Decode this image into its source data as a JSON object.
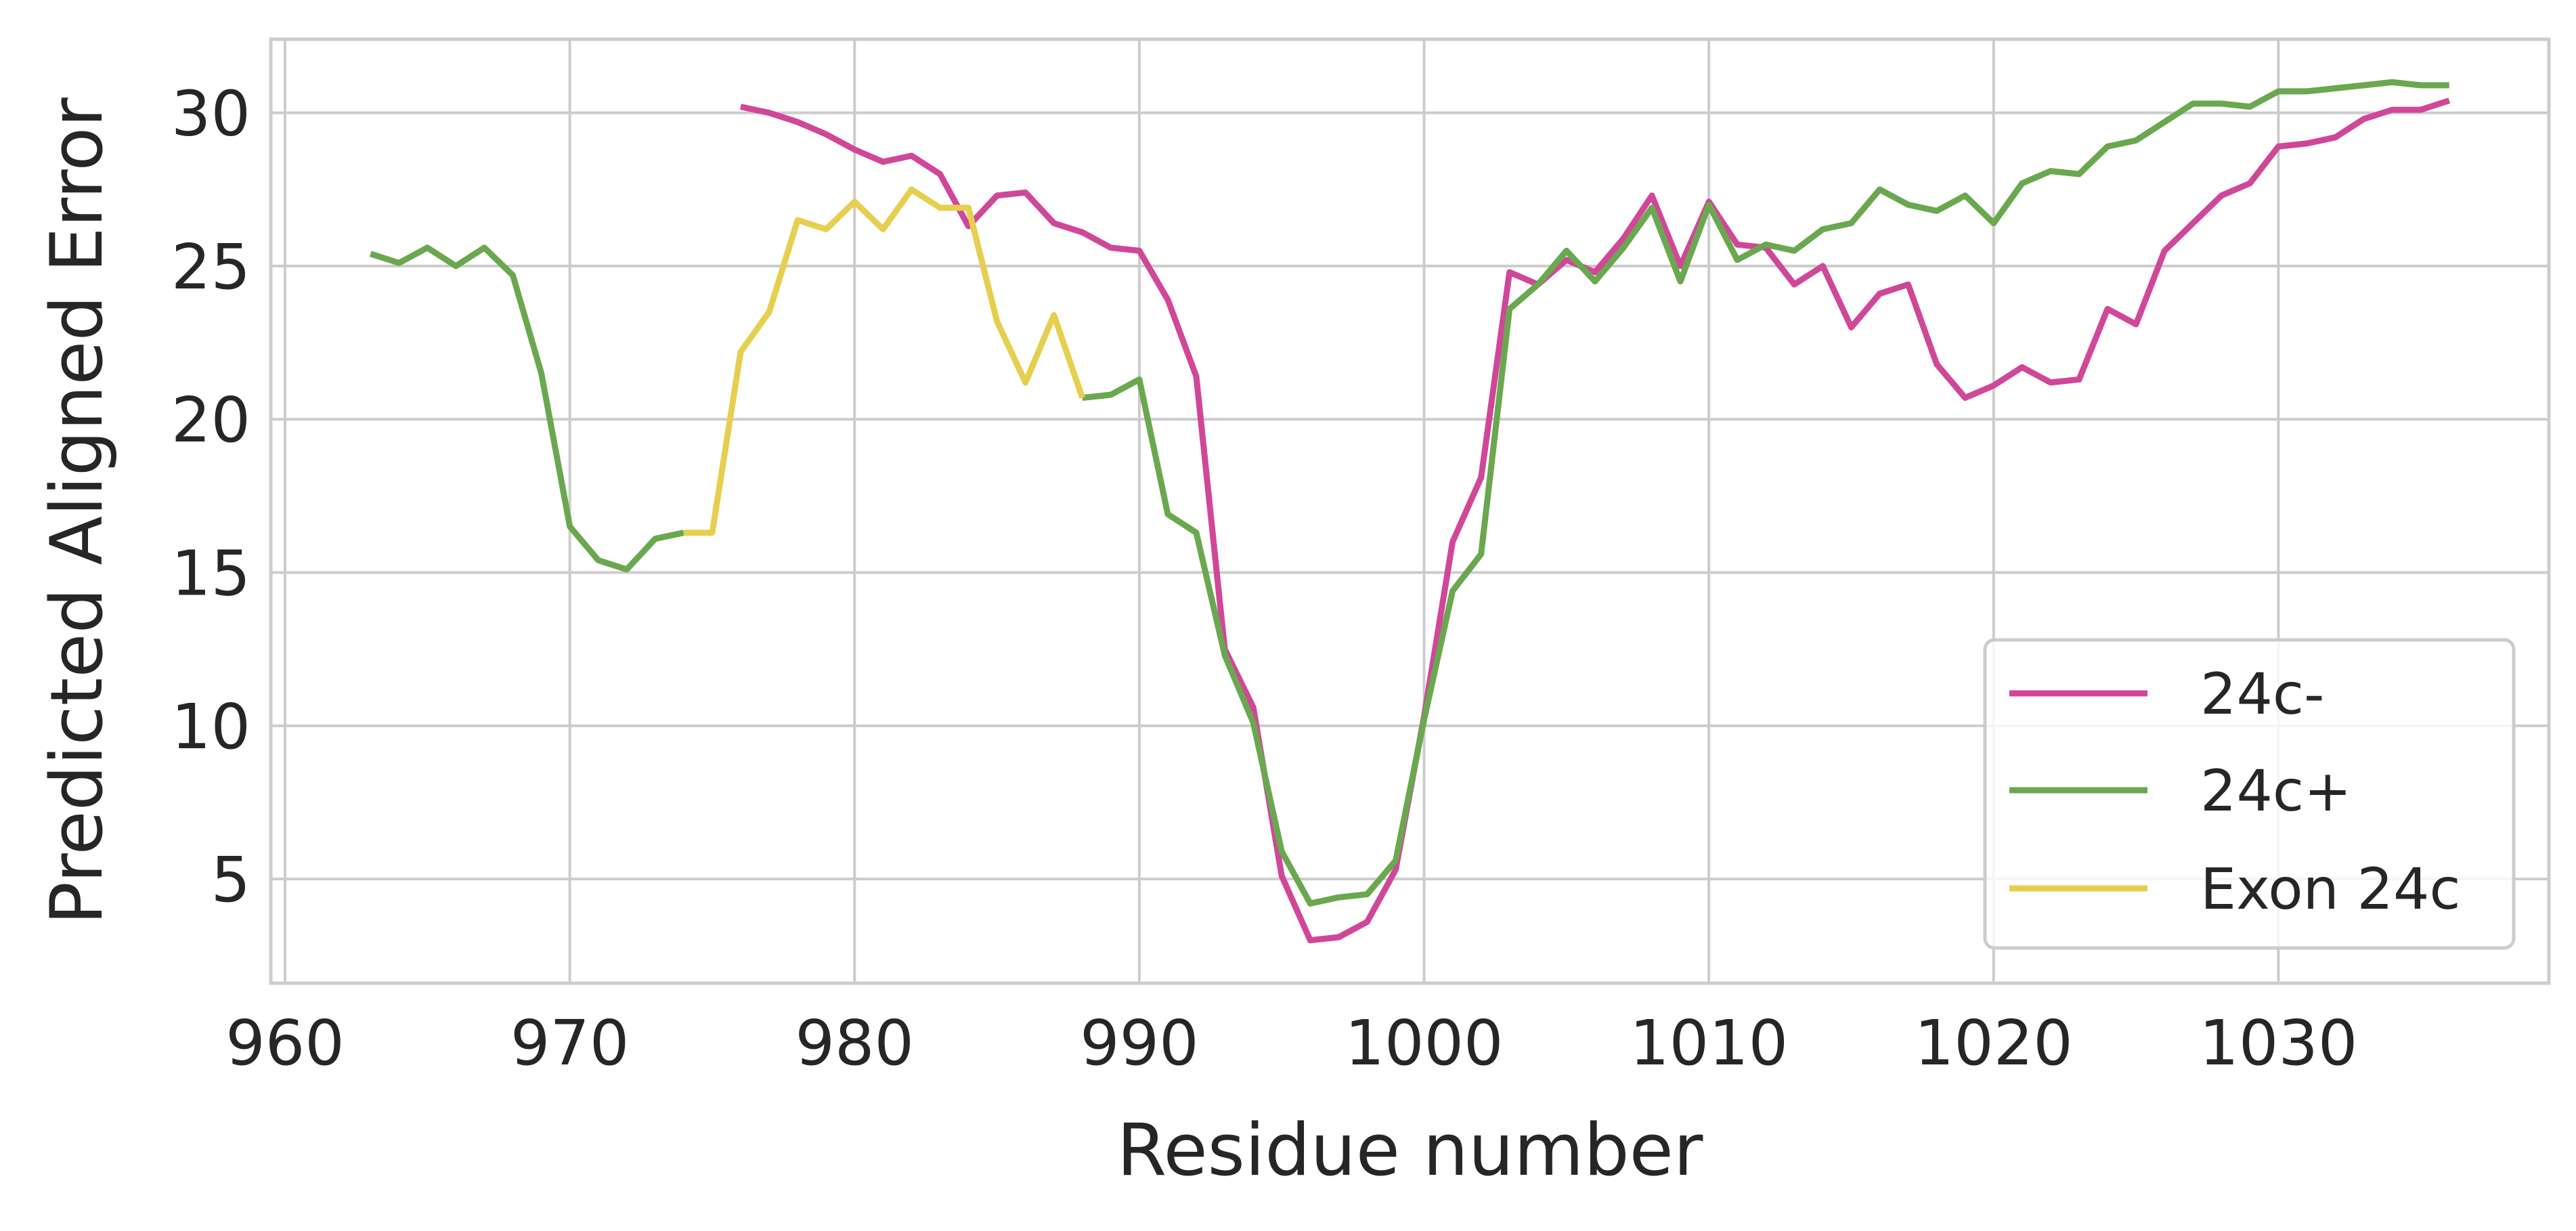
{
  "chart_data": {
    "type": "line",
    "xlabel": "Residue number",
    "ylabel": "Predicted Aligned Error",
    "xlim": [
      959.5,
      1039.5
    ],
    "ylim": [
      1.6,
      32.4
    ],
    "xticks": [
      960,
      970,
      980,
      990,
      1000,
      1010,
      1020,
      1030
    ],
    "yticks": [
      5,
      10,
      15,
      20,
      25,
      30
    ],
    "grid": true,
    "legend_position": "lower-right",
    "legend": [
      "24c-",
      "24c+",
      "Exon 24c"
    ],
    "series": [
      {
        "name": "24c-",
        "color": "#d04799",
        "x": [
          976,
          977,
          978,
          979,
          980,
          981,
          982,
          983,
          984,
          985,
          986,
          987,
          988,
          989,
          990,
          991,
          992,
          993,
          994,
          995,
          996,
          997,
          998,
          999,
          1000,
          1001,
          1002,
          1003,
          1004,
          1005,
          1006,
          1007,
          1008,
          1009,
          1010,
          1011,
          1012,
          1013,
          1014,
          1015,
          1016,
          1017,
          1018,
          1019,
          1020,
          1021,
          1022,
          1023,
          1024,
          1025,
          1026,
          1027,
          1028,
          1029,
          1030,
          1031,
          1032,
          1033,
          1034,
          1035,
          1036
        ],
        "y": [
          30.2,
          30.0,
          29.7,
          29.3,
          28.8,
          28.4,
          28.6,
          28.0,
          26.3,
          27.3,
          27.4,
          26.4,
          26.1,
          25.6,
          25.5,
          23.9,
          21.4,
          12.5,
          10.6,
          5.1,
          3.0,
          3.1,
          3.6,
          5.3,
          10.3,
          16.0,
          18.1,
          24.8,
          24.4,
          25.2,
          24.8,
          25.9,
          27.3,
          25.0,
          27.1,
          25.7,
          25.6,
          24.4,
          25.0,
          23.0,
          24.1,
          24.4,
          21.8,
          20.7,
          21.1,
          21.7,
          21.2,
          21.3,
          23.6,
          23.1,
          25.5,
          26.4,
          27.3,
          27.7,
          28.9,
          29.0,
          29.2,
          29.8,
          30.1,
          30.1,
          30.4
        ]
      },
      {
        "name": "24c+",
        "color": "#6aa84f",
        "segments": [
          {
            "x": [
              963,
              964,
              965,
              966,
              967,
              968,
              969,
              970,
              971,
              972,
              973,
              974
            ],
            "y": [
              25.4,
              25.1,
              25.6,
              25.0,
              25.6,
              24.7,
              21.5,
              16.5,
              15.4,
              15.1,
              16.1,
              16.3
            ]
          },
          {
            "x": [
              988,
              989,
              990,
              991,
              992,
              993,
              994,
              995,
              996,
              997,
              998,
              999,
              1000,
              1001,
              1002,
              1003,
              1004,
              1005,
              1006,
              1007,
              1008,
              1009,
              1010,
              1011,
              1012,
              1013,
              1014,
              1015,
              1016,
              1017,
              1018,
              1019,
              1020,
              1021,
              1022,
              1023,
              1024,
              1025,
              1026,
              1027,
              1028,
              1029,
              1030,
              1031,
              1032,
              1033,
              1034,
              1035,
              1036
            ],
            "y": [
              20.7,
              20.8,
              21.3,
              16.9,
              16.3,
              12.3,
              10.1,
              5.9,
              4.2,
              4.4,
              4.5,
              5.6,
              10.2,
              14.4,
              15.6,
              23.6,
              24.4,
              25.5,
              24.5,
              25.6,
              26.9,
              24.5,
              27.0,
              25.2,
              25.7,
              25.5,
              26.2,
              26.4,
              27.5,
              27.0,
              26.8,
              27.3,
              26.4,
              27.7,
              28.1,
              28.0,
              28.9,
              29.1,
              29.7,
              30.3,
              30.3,
              30.2,
              30.7,
              30.7,
              30.8,
              30.9,
              31.0,
              30.9,
              30.9
            ]
          }
        ]
      },
      {
        "name": "Exon 24c",
        "color": "#e6cf4e",
        "x": [
          974,
          975,
          976,
          977,
          978,
          979,
          980,
          981,
          982,
          983,
          984,
          985,
          986,
          987,
          988
        ],
        "y": [
          16.3,
          16.3,
          22.2,
          23.5,
          26.5,
          26.2,
          27.1,
          26.2,
          27.5,
          26.9,
          26.9,
          23.2,
          21.2,
          23.4,
          20.7
        ]
      }
    ]
  }
}
